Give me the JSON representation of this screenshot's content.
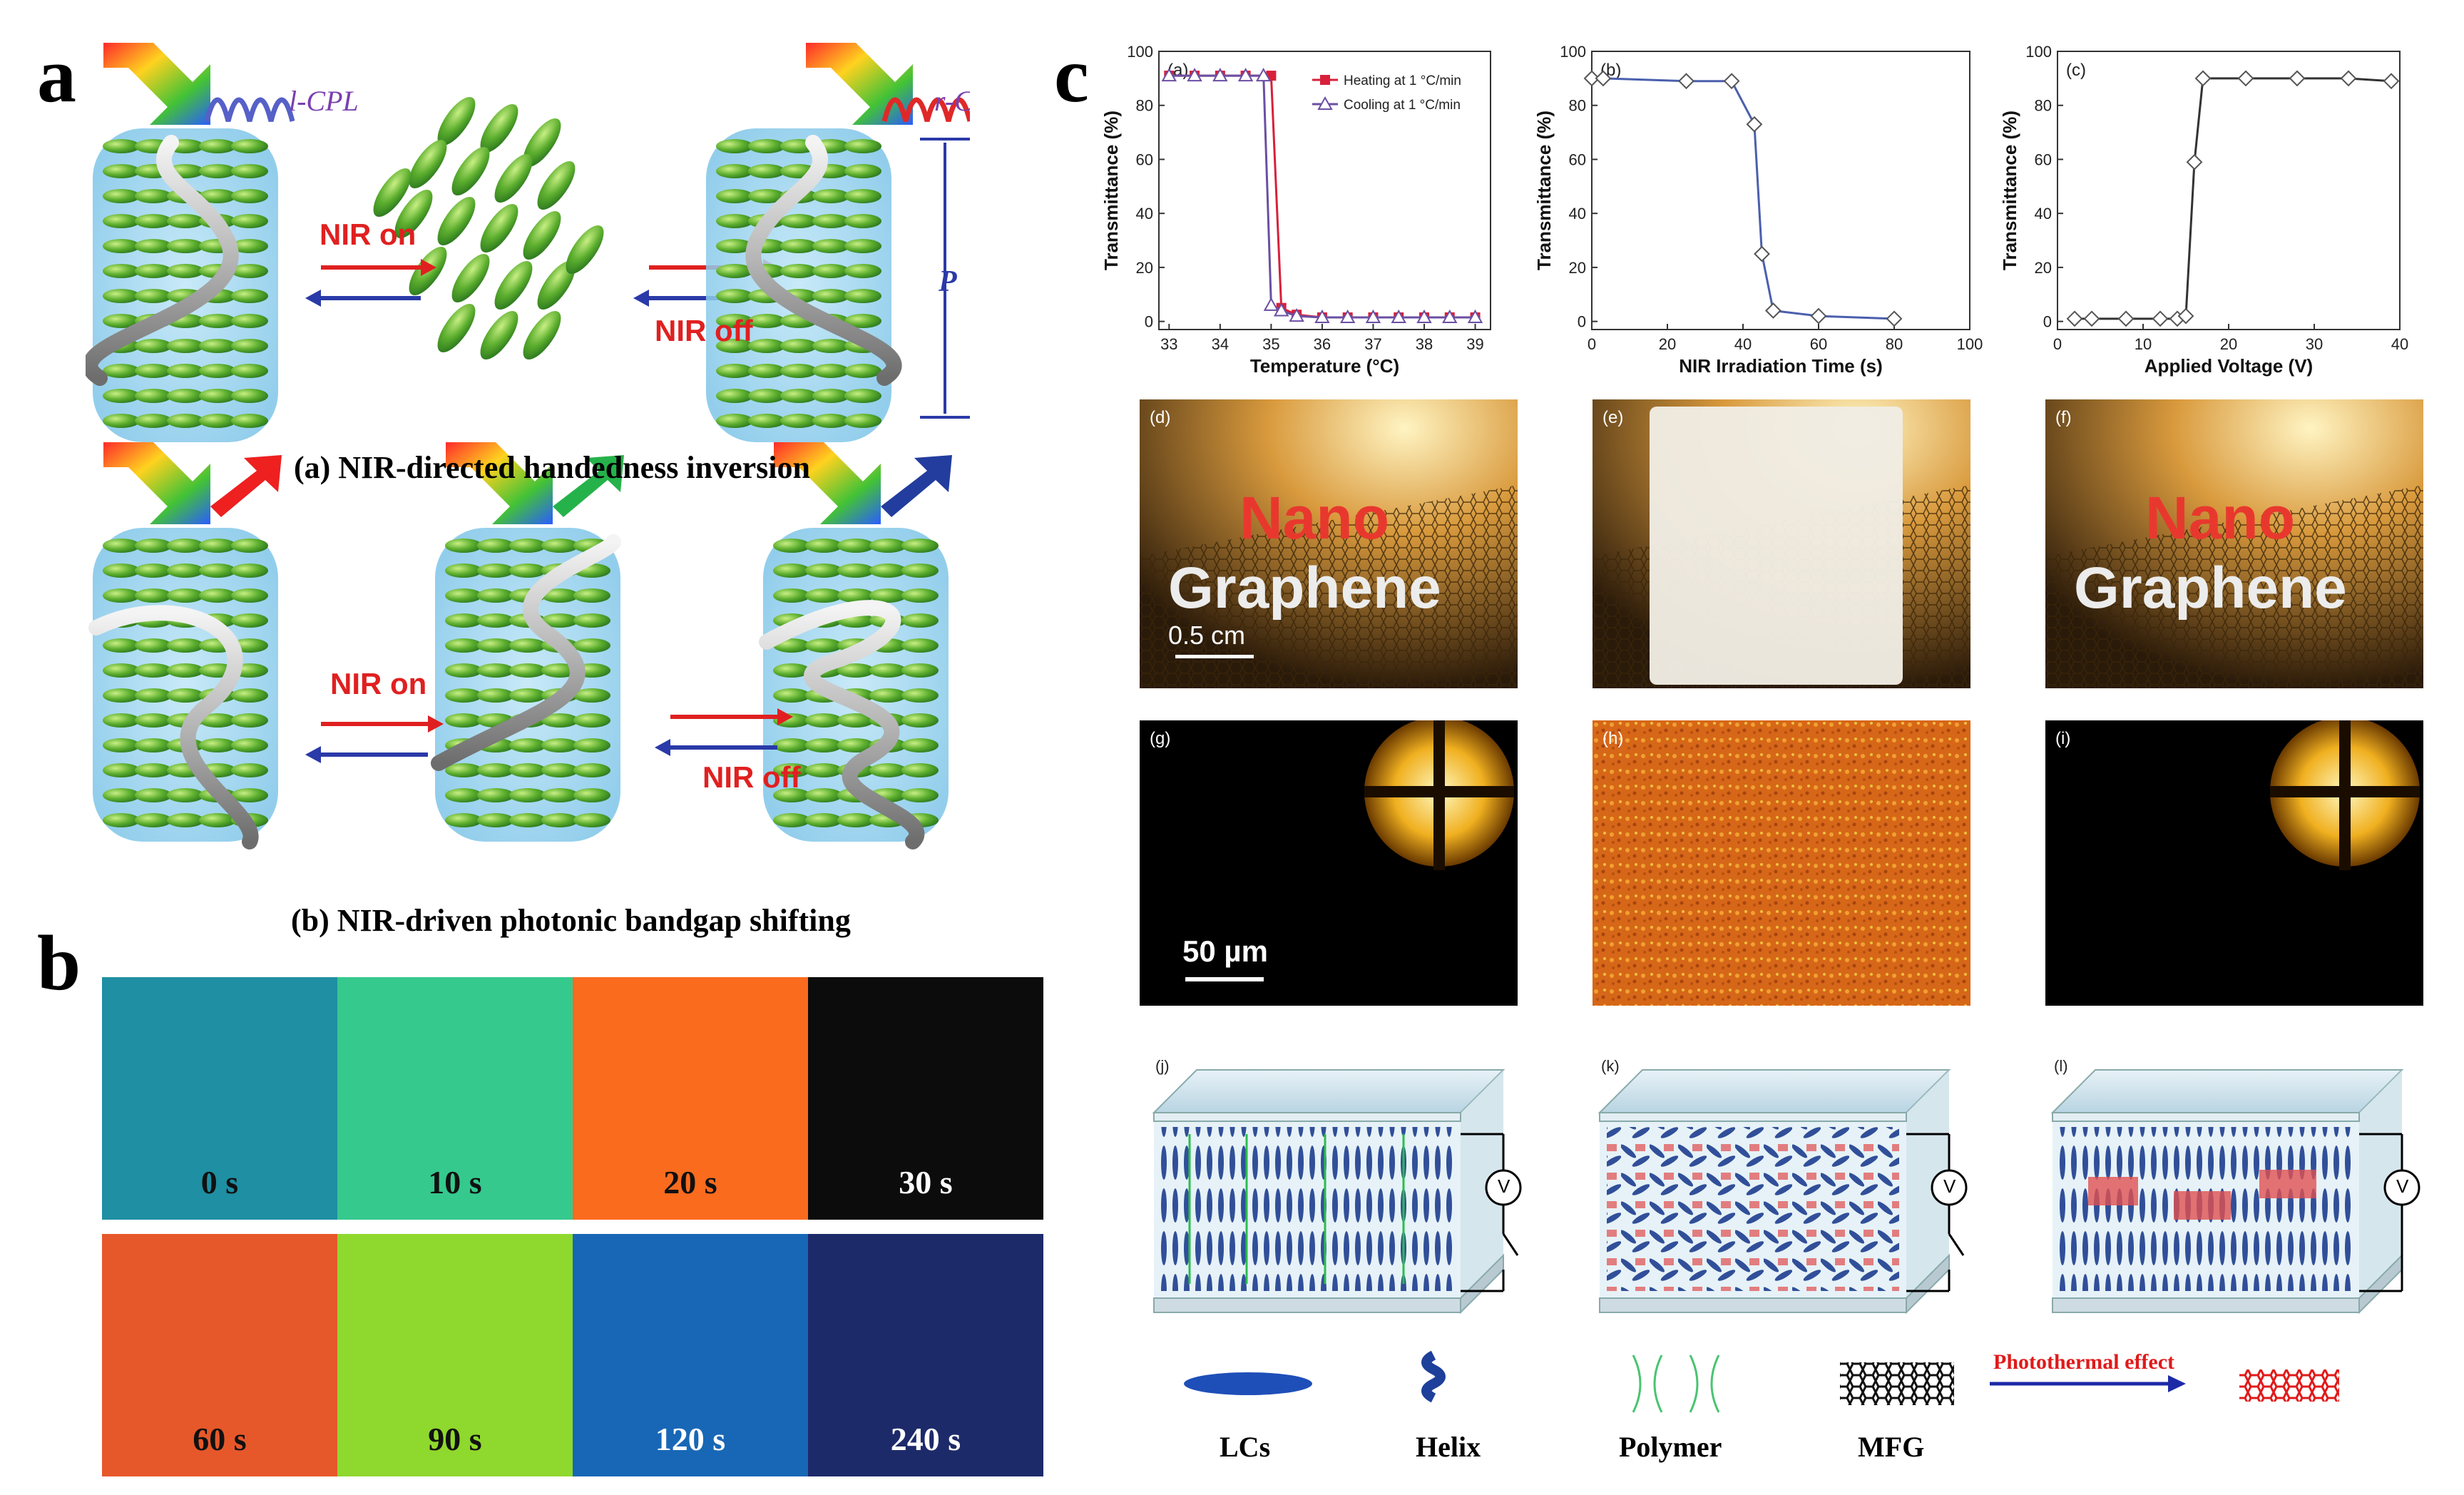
{
  "labels": {
    "a": "a",
    "b": "b",
    "c": "c"
  },
  "panel_a": {
    "lcpl": "l-CPL",
    "rcpl": "r-CPL",
    "pitch": "P",
    "nir_on": "NIR on",
    "nir_off": "NIR off",
    "caption_a": "(a) NIR-directed handedness inversion",
    "caption_b": "(b) NIR-driven photonic bandgap shifting",
    "nir_on_2": "NIR on",
    "nir_off_2": "NIR off"
  },
  "panel_b": {
    "swatches": [
      {
        "label": "0 s",
        "color": "#1f8fa3",
        "text_color": "#111"
      },
      {
        "label": "10 s",
        "color": "#35c98e",
        "text_color": "#111"
      },
      {
        "label": "20 s",
        "color": "#fa6b1e",
        "text_color": "#111"
      },
      {
        "label": "30 s",
        "color": "#0b0c0b",
        "text_color": "#ffffff"
      },
      {
        "label": "60 s",
        "color": "#e6582a",
        "text_color": "#111"
      },
      {
        "label": "90 s",
        "color": "#8fd82d",
        "text_color": "#111"
      },
      {
        "label": "120 s",
        "color": "#1867b6",
        "text_color": "#ffffff"
      },
      {
        "label": "240 s",
        "color": "#1d2a6a",
        "text_color": "#ffffff"
      }
    ]
  },
  "photos": {
    "d": "(d)",
    "e": "(e)",
    "f": "(f)",
    "nano": "Nano",
    "graphene": "Graphene",
    "scale": "0.5 cm"
  },
  "micro": {
    "g": "(g)",
    "h": "(h)",
    "i": "(i)",
    "scale": "50 µm"
  },
  "schematics": {
    "j": "(j)",
    "k": "(k)",
    "l": "(l)",
    "volt": "V"
  },
  "legend": {
    "lcs": "LCs",
    "helix": "Helix",
    "polymer": "Polymer",
    "mfg": "MFG",
    "effect": "Photothermal effect"
  },
  "chart_data": [
    {
      "type": "line",
      "panel": "(a)",
      "xlabel": "Temperature (°C)",
      "ylabel": "Transmittance (%)",
      "xlim": [
        32.8,
        39.3
      ],
      "ylim": [
        -3,
        100
      ],
      "xticks": [
        33,
        34,
        35,
        36,
        37,
        38,
        39
      ],
      "yticks": [
        0,
        20,
        40,
        60,
        80,
        100
      ],
      "series": [
        {
          "name": "Heating at 1 °C/min",
          "color": "#d8203a",
          "marker": "square",
          "x": [
            33,
            33.5,
            34,
            34.5,
            35,
            35.2,
            35.5,
            36,
            36.5,
            37,
            37.5,
            38,
            38.5,
            39
          ],
          "y": [
            91,
            91,
            91,
            91,
            91,
            5,
            2.5,
            1.5,
            1.5,
            1.5,
            1.5,
            1.5,
            1.5,
            1.5
          ]
        },
        {
          "name": "Cooling at 1 °C/min",
          "color": "#6a4fa3",
          "marker": "triangle",
          "x": [
            33,
            33.5,
            34,
            34.5,
            34.85,
            35,
            35.2,
            35.5,
            36,
            36.5,
            37,
            37.5,
            38,
            38.5,
            39
          ],
          "y": [
            91,
            91,
            91,
            91,
            91,
            6,
            4,
            2,
            1.5,
            1.5,
            1.5,
            1.5,
            1.5,
            1.5,
            1.5
          ]
        }
      ]
    },
    {
      "type": "line",
      "panel": "(b)",
      "xlabel": "NIR Irradiation Time (s)",
      "ylabel": "Transmittance (%)",
      "xlim": [
        0,
        100
      ],
      "ylim": [
        -3,
        100
      ],
      "xticks": [
        0,
        20,
        40,
        60,
        80,
        100
      ],
      "yticks": [
        0,
        20,
        40,
        60,
        80,
        100
      ],
      "series": [
        {
          "name": "",
          "color": "#4a5fae",
          "marker": "diamond",
          "x": [
            0,
            3,
            25,
            37,
            43,
            45,
            48,
            60,
            80
          ],
          "y": [
            90,
            90,
            89,
            89,
            73,
            25,
            4,
            2,
            1
          ]
        }
      ]
    },
    {
      "type": "line",
      "panel": "(c)",
      "xlabel": "Applied Voltage (V)",
      "ylabel": "Transmittance (%)",
      "xlim": [
        0,
        40
      ],
      "ylim": [
        -3,
        100
      ],
      "xticks": [
        0,
        10,
        20,
        30,
        40
      ],
      "yticks": [
        0,
        20,
        40,
        60,
        80,
        100
      ],
      "series": [
        {
          "name": "",
          "color": "#333333",
          "marker": "diamond",
          "x": [
            2,
            4,
            8,
            12,
            14,
            15,
            16,
            17,
            22,
            28,
            34,
            39
          ],
          "y": [
            1,
            1,
            1,
            1,
            1,
            2,
            59,
            90,
            90,
            90,
            90,
            89
          ]
        }
      ]
    }
  ]
}
